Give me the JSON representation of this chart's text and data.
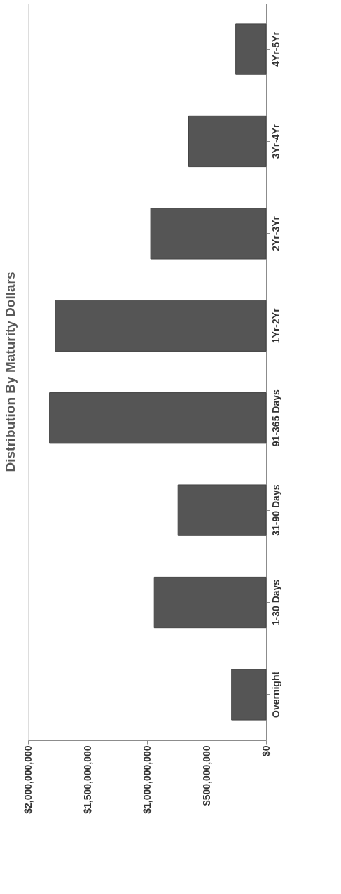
{
  "chart_data": {
    "type": "bar",
    "orientation": "horizontal",
    "title": "Distribution By Maturity Dollars",
    "categories": [
      "4Yr-5Yr",
      "3Yr-4Yr",
      "2Yr-3Yr",
      "1Yr-2Yr",
      "91-365 Days",
      "31-90 Days",
      "1-30 Days",
      "Overnight"
    ],
    "values": [
      255000000,
      650000000,
      970000000,
      1770000000,
      1820000000,
      740000000,
      940000000,
      290000000
    ],
    "color": "#555555",
    "xlim": [
      2000000000,
      0
    ],
    "xticks": [
      {
        "value": 2000000000,
        "label": "$2,000,000,000"
      },
      {
        "value": 1500000000,
        "label": "$1,500,000,000"
      },
      {
        "value": 1000000000,
        "label": "$1,000,000,000"
      },
      {
        "value": 500000000,
        "label": "$500,000,000"
      },
      {
        "value": 0,
        "label": "$0"
      }
    ],
    "grid": false
  }
}
